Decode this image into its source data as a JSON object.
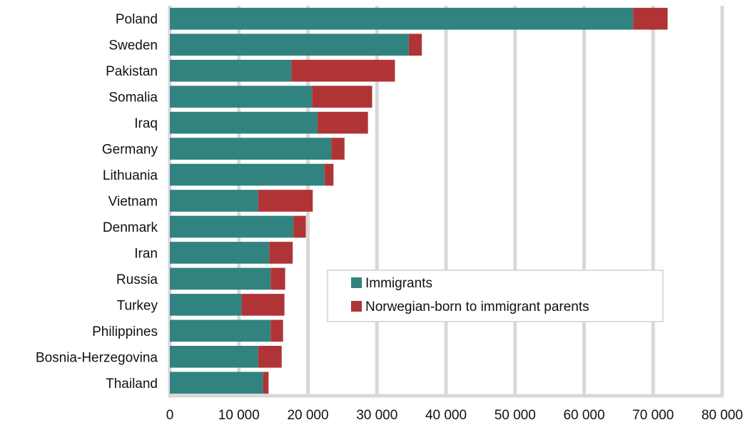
{
  "chart_data": {
    "type": "bar",
    "orientation": "horizontal",
    "stacked": true,
    "categories": [
      "Poland",
      "Sweden",
      "Pakistan",
      "Somalia",
      "Iraq",
      "Germany",
      "Lithuania",
      "Vietnam",
      "Denmark",
      "Iran",
      "Russia",
      "Turkey",
      "Philippines",
      "Bosnia-Herzegovina",
      "Thailand"
    ],
    "series": [
      {
        "name": "Immigrants",
        "color": "#31837f",
        "values": [
          67100,
          34600,
          17600,
          20600,
          21400,
          23400,
          22400,
          12800,
          17900,
          14400,
          14600,
          10400,
          14600,
          12800,
          13500
        ]
      },
      {
        "name": "Norwegian-born to immigrant parents",
        "color": "#b03436",
        "values": [
          5000,
          1900,
          15000,
          8700,
          7300,
          1900,
          1300,
          7900,
          1800,
          3400,
          2100,
          6200,
          1800,
          3400,
          800
        ]
      }
    ],
    "xlim": [
      0,
      80000
    ],
    "xticks": [
      0,
      10000,
      20000,
      30000,
      40000,
      50000,
      60000,
      70000,
      80000
    ],
    "xtick_labels": [
      "0",
      "10 000",
      "20 000",
      "30 000",
      "40 000",
      "50 000",
      "60 000",
      "70 000",
      "80 000"
    ],
    "title": "",
    "xlabel": "",
    "ylabel": "",
    "grid": true,
    "legend_position": "lower-right",
    "plot_background": "#ffffff",
    "grid_color": "#d8d8d8"
  }
}
